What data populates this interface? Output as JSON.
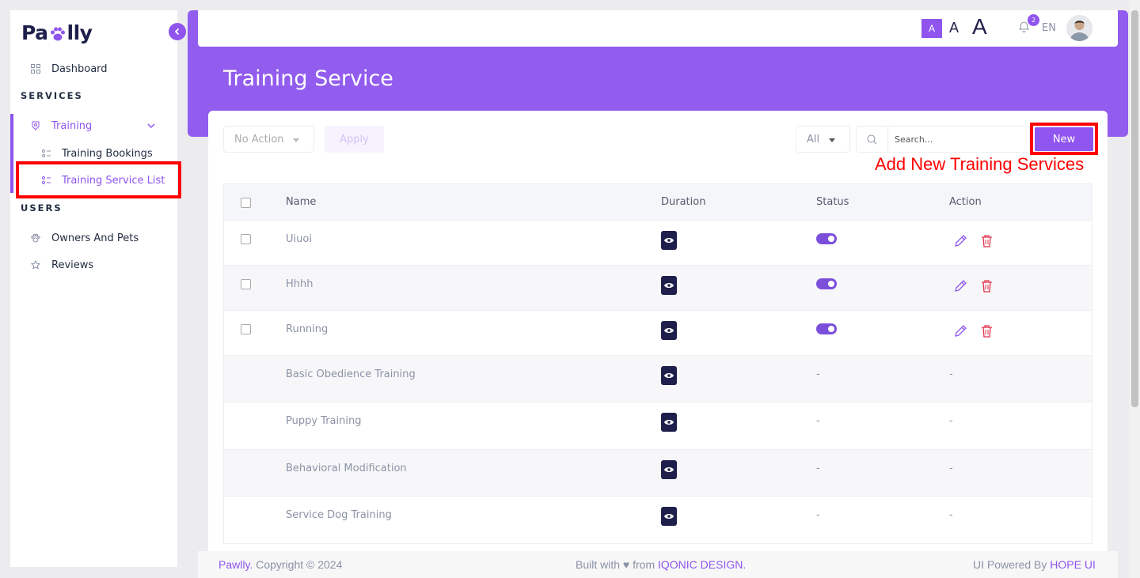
{
  "brand": {
    "name_left": "Pa",
    "name_right": "lly"
  },
  "sidebar": {
    "dashboard": "Dashboard",
    "services_title": "SERVICES",
    "training": "Training",
    "training_bookings": "Training Bookings",
    "training_service_list": "Training Service List",
    "users_title": "USERS",
    "owners_and_pets": "Owners And Pets",
    "reviews": "Reviews"
  },
  "header": {
    "font_small": "A",
    "font_medium": "A",
    "font_large": "A",
    "notification_count": "2",
    "language": "EN"
  },
  "page": {
    "title": "Training Service"
  },
  "toolbar": {
    "bulk_action": "No Action",
    "apply_label": "Apply",
    "filter": "All",
    "search_placeholder": "Search...",
    "new_label": "New"
  },
  "annotation": {
    "text": "Add New Training Services"
  },
  "table": {
    "headers": {
      "name": "Name",
      "duration": "Duration",
      "status": "Status",
      "action": "Action"
    },
    "rows": [
      {
        "name": "Uiuoi",
        "status": "",
        "action": ""
      },
      {
        "name": "Hhhh",
        "status": "",
        "action": ""
      },
      {
        "name": "Running",
        "status": "",
        "action": ""
      },
      {
        "name": "Basic Obedience Training",
        "status": "-",
        "action": "-"
      },
      {
        "name": "Puppy Training",
        "status": "-",
        "action": "-"
      },
      {
        "name": "Behavioral Modification",
        "status": "-",
        "action": "-"
      },
      {
        "name": "Service Dog Training",
        "status": "-",
        "action": "-"
      }
    ]
  },
  "footer": {
    "brand": "Pawlly.",
    "copyright": " Copyright © 2024",
    "built_with": "Built with ♥ from ",
    "built_by": "IQONIC DESIGN.",
    "powered_by": "UI Powered By ",
    "powered_link": "HOPE UI"
  },
  "colors": {
    "accent": "#8f55ee",
    "dark": "#1e1f4b",
    "danger": "#e0314b",
    "annotation": "#ff0000"
  }
}
